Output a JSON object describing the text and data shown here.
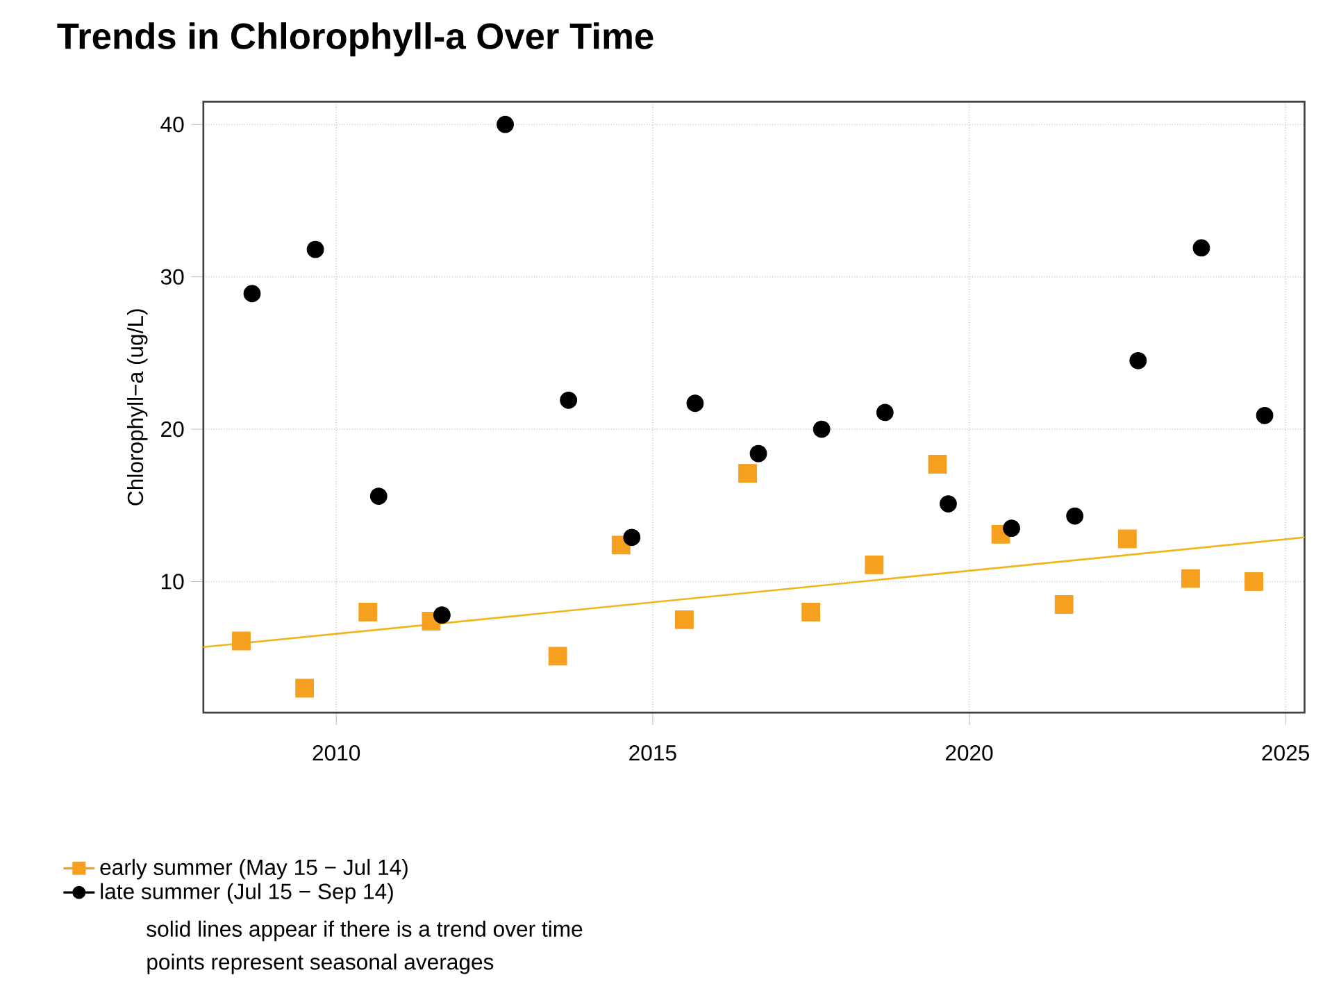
{
  "chart_data": {
    "type": "scatter",
    "title": "Trends in Chlorophyll-a Over Time",
    "ylabel": "Chlorophyll−a (ug/L)",
    "annotations": [
      "solid lines appear if there is a trend over time",
      "points represent seasonal averages"
    ],
    "series": [
      {
        "name": "early summer (May 15 − Jul 14)",
        "color": "#f5a01e",
        "marker": "square",
        "x": [
          2008.5,
          2009.5,
          2010.5,
          2011.5,
          2013.5,
          2014.5,
          2015.5,
          2016.5,
          2017.5,
          2018.5,
          2019.5,
          2020.5,
          2021.5,
          2022.5,
          2023.5,
          2024.5
        ],
        "values": [
          6.1,
          3.0,
          8.0,
          7.4,
          5.1,
          12.4,
          7.5,
          17.1,
          8.0,
          11.1,
          17.7,
          13.1,
          8.5,
          12.8,
          10.2,
          10.0
        ]
      },
      {
        "name": "late summer (Jul 15 − Sep 14)",
        "color": "#000000",
        "marker": "circle",
        "x": [
          2008.67,
          2009.67,
          2010.67,
          2011.67,
          2012.67,
          2013.67,
          2014.67,
          2015.67,
          2016.67,
          2017.67,
          2018.67,
          2019.67,
          2020.67,
          2021.67,
          2022.67,
          2023.67,
          2024.67
        ],
        "values": [
          28.9,
          31.8,
          15.6,
          7.8,
          40.0,
          21.9,
          12.9,
          21.7,
          18.4,
          20.0,
          21.1,
          15.1,
          13.5,
          14.3,
          24.5,
          31.9,
          20.9
        ]
      },
      {
        "type": "line",
        "color": "#f2b519",
        "line_style": "solid",
        "x": [
          2007.9,
          2025.3
        ],
        "values": [
          5.7,
          12.9
        ]
      }
    ],
    "xlim": [
      2007.9,
      2025.3
    ],
    "ylim": [
      1.4,
      41.5
    ],
    "xticks": [
      2010,
      2015,
      2020,
      2025
    ],
    "yticks": [
      10,
      20,
      30,
      40
    ],
    "grid": true,
    "legend": "bottom"
  }
}
